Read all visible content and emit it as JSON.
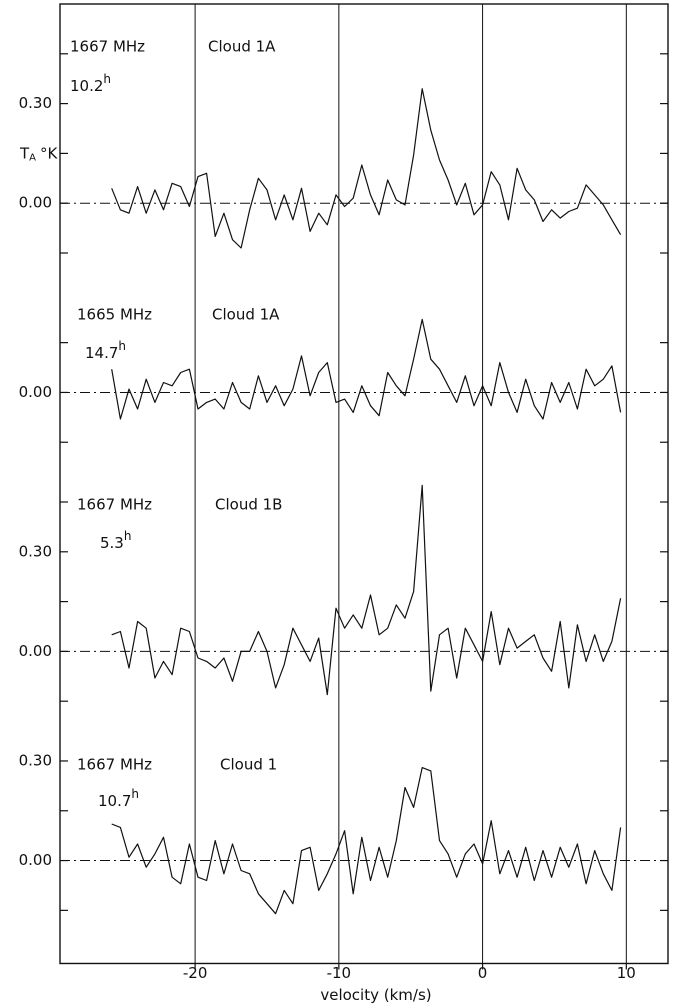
{
  "chart_data": [
    {
      "type": "line",
      "frequency": "1667 MHz",
      "source": "Cloud 1A",
      "integration": "10.2",
      "integration_unit": "h",
      "y_label": "T",
      "y_label_subscript": "A",
      "y_label_unit": "°K",
      "xlim": [
        -29.4,
        12.9
      ],
      "ylim": [
        -0.26,
        0.6
      ],
      "yticks": [
        {
          "value": 0.3,
          "label": "0.30"
        },
        {
          "value": 0,
          "label": "0.00"
        }
      ],
      "minor_yticks": [
        0.45,
        0.15,
        -0.15
      ],
      "x": [
        -25.8,
        -25.2,
        -24.6,
        -24.0,
        -23.4,
        -22.8,
        -22.2,
        -21.6,
        -21.0,
        -20.4,
        -19.8,
        -19.2,
        -18.6,
        -18.0,
        -17.4,
        -16.8,
        -16.2,
        -15.6,
        -15.0,
        -14.4,
        -13.8,
        -13.2,
        -12.6,
        -12.0,
        -11.4,
        -10.8,
        -10.2,
        -9.6,
        -9.0,
        -8.4,
        -7.8,
        -7.2,
        -6.6,
        -6.0,
        -5.4,
        -4.8,
        -4.2,
        -3.6,
        -3.0,
        -2.4,
        -1.8,
        -1.2,
        -0.6,
        0.0,
        0.6,
        1.2,
        1.8,
        2.4,
        3.0,
        3.6,
        4.2,
        4.8,
        5.4,
        6.0,
        6.6,
        7.2,
        7.8,
        8.4,
        9.0,
        9.6
      ],
      "values": [
        0.045,
        -0.02,
        -0.03,
        0.05,
        -0.03,
        0.04,
        -0.02,
        0.06,
        0.05,
        -0.01,
        0.08,
        0.09,
        -0.1,
        -0.03,
        -0.11,
        -0.135,
        -0.02,
        0.075,
        0.04,
        -0.05,
        0.025,
        -0.05,
        0.045,
        -0.085,
        -0.03,
        -0.065,
        0.025,
        -0.01,
        0.015,
        0.115,
        0.025,
        -0.035,
        0.07,
        0.01,
        -0.005,
        0.145,
        0.345,
        0.22,
        0.13,
        0.07,
        -0.005,
        0.06,
        -0.035,
        -0.005,
        0.095,
        0.055,
        -0.05,
        0.105,
        0.04,
        0.01,
        -0.055,
        -0.02,
        -0.045,
        -0.025,
        -0.015,
        0.055,
        0.025,
        -0.005,
        -0.05,
        -0.095
      ]
    },
    {
      "type": "line",
      "frequency": "1665 MHz",
      "source": "Cloud 1A",
      "integration": "14.7",
      "integration_unit": "h",
      "xlim": [
        -29.4,
        12.9
      ],
      "ylim": [
        -0.24,
        0.31
      ],
      "yticks": [
        {
          "value": 0,
          "label": "0.00"
        }
      ],
      "minor_yticks": [
        0.15,
        -0.15
      ],
      "x": [
        -25.8,
        -25.2,
        -24.6,
        -24.0,
        -23.4,
        -22.8,
        -22.2,
        -21.6,
        -21.0,
        -20.4,
        -19.8,
        -19.2,
        -18.6,
        -18.0,
        -17.4,
        -16.8,
        -16.2,
        -15.6,
        -15.0,
        -14.4,
        -13.8,
        -13.2,
        -12.6,
        -12.0,
        -11.4,
        -10.8,
        -10.2,
        -9.6,
        -9.0,
        -8.4,
        -7.8,
        -7.2,
        -6.6,
        -6.0,
        -5.4,
        -4.8,
        -4.2,
        -3.6,
        -3.0,
        -2.4,
        -1.8,
        -1.2,
        -0.6,
        0.0,
        0.6,
        1.2,
        1.8,
        2.4,
        3.0,
        3.6,
        4.2,
        4.8,
        5.4,
        6.0,
        6.6,
        7.2,
        7.8,
        8.4,
        9.0,
        9.6
      ],
      "values": [
        0.07,
        -0.08,
        0.01,
        -0.05,
        0.04,
        -0.03,
        0.03,
        0.02,
        0.06,
        0.07,
        -0.05,
        -0.03,
        -0.02,
        -0.05,
        0.03,
        -0.03,
        -0.05,
        0.05,
        -0.03,
        0.02,
        -0.04,
        0.01,
        0.11,
        -0.01,
        0.06,
        0.09,
        -0.03,
        -0.02,
        -0.06,
        0.02,
        -0.04,
        -0.07,
        0.06,
        0.02,
        -0.01,
        0.1,
        0.22,
        0.1,
        0.07,
        0.02,
        -0.03,
        0.05,
        -0.04,
        0.02,
        -0.04,
        0.09,
        0.0,
        -0.06,
        0.04,
        -0.04,
        -0.08,
        0.03,
        -0.03,
        0.03,
        -0.05,
        0.07,
        0.02,
        0.04,
        0.08,
        -0.06
      ]
    },
    {
      "type": "line",
      "frequency": "1667 MHz",
      "source": "Cloud 1B",
      "integration": "5.3",
      "integration_unit": "h",
      "xlim": [
        -29.4,
        12.9
      ],
      "ylim": [
        -0.27,
        0.54
      ],
      "yticks": [
        {
          "value": 0.3,
          "label": "0.30"
        },
        {
          "value": 0,
          "label": "0.00"
        }
      ],
      "minor_yticks": [
        0.45,
        0.15,
        -0.15
      ],
      "x": [
        -25.8,
        -25.2,
        -24.6,
        -24.0,
        -23.4,
        -22.8,
        -22.2,
        -21.6,
        -21.0,
        -20.4,
        -19.8,
        -19.2,
        -18.6,
        -18.0,
        -17.4,
        -16.8,
        -16.2,
        -15.6,
        -15.0,
        -14.4,
        -13.8,
        -13.2,
        -12.6,
        -12.0,
        -11.4,
        -10.8,
        -10.2,
        -9.6,
        -9.0,
        -8.4,
        -7.8,
        -7.2,
        -6.6,
        -6.0,
        -5.4,
        -4.8,
        -4.2,
        -3.6,
        -3.0,
        -2.4,
        -1.8,
        -1.2,
        -0.6,
        0.0,
        0.6,
        1.2,
        1.8,
        2.4,
        3.0,
        3.6,
        4.2,
        4.8,
        5.4,
        6.0,
        6.6,
        7.2,
        7.8,
        8.4,
        9.0,
        9.6
      ],
      "values": [
        0.05,
        0.06,
        -0.05,
        0.09,
        0.07,
        -0.08,
        -0.03,
        -0.07,
        0.07,
        0.06,
        -0.02,
        -0.03,
        -0.05,
        -0.02,
        -0.09,
        0.0,
        0.0,
        0.06,
        0.0,
        -0.11,
        -0.04,
        0.07,
        0.02,
        -0.03,
        0.04,
        -0.13,
        0.13,
        0.07,
        0.11,
        0.07,
        0.17,
        0.05,
        0.07,
        0.14,
        0.1,
        0.18,
        0.5,
        -0.12,
        0.05,
        0.07,
        -0.08,
        0.07,
        0.02,
        -0.03,
        0.12,
        -0.04,
        0.07,
        0.01,
        0.03,
        0.05,
        -0.02,
        -0.06,
        0.09,
        -0.11,
        0.08,
        -0.03,
        0.05,
        -0.03,
        0.03,
        0.16
      ]
    },
    {
      "type": "line",
      "frequency": "1667 MHz",
      "source": "Cloud 1",
      "integration": "10.7",
      "integration_unit": "h",
      "x_label": "velocity (km/s)",
      "xlim": [
        -29.4,
        12.9
      ],
      "xticks": [
        -20,
        -10,
        0,
        10
      ],
      "ylim": [
        -0.31,
        0.36
      ],
      "yticks": [
        {
          "value": 0.3,
          "label": "0.30"
        },
        {
          "value": 0,
          "label": "0.00"
        }
      ],
      "minor_yticks": [
        0.15,
        -0.15
      ],
      "x": [
        -25.8,
        -25.2,
        -24.6,
        -24.0,
        -23.4,
        -22.8,
        -22.2,
        -21.6,
        -21.0,
        -20.4,
        -19.8,
        -19.2,
        -18.6,
        -18.0,
        -17.4,
        -16.8,
        -16.2,
        -15.6,
        -15.0,
        -14.4,
        -13.8,
        -13.2,
        -12.6,
        -12.0,
        -11.4,
        -10.8,
        -10.2,
        -9.6,
        -9.0,
        -8.4,
        -7.8,
        -7.2,
        -6.6,
        -6.0,
        -5.4,
        -4.8,
        -4.2,
        -3.6,
        -3.0,
        -2.4,
        -1.8,
        -1.2,
        -0.6,
        0.0,
        0.6,
        1.2,
        1.8,
        2.4,
        3.0,
        3.6,
        4.2,
        4.8,
        5.4,
        6.0,
        6.6,
        7.2,
        7.8,
        8.4,
        9.0,
        9.6
      ],
      "values": [
        0.11,
        0.1,
        0.01,
        0.05,
        -0.02,
        0.02,
        0.07,
        -0.05,
        -0.07,
        0.05,
        -0.05,
        -0.06,
        0.06,
        -0.04,
        0.05,
        -0.03,
        -0.04,
        -0.1,
        -0.13,
        -0.16,
        -0.09,
        -0.13,
        0.03,
        0.04,
        -0.09,
        -0.04,
        0.02,
        0.09,
        -0.1,
        0.07,
        -0.06,
        0.04,
        -0.05,
        0.06,
        0.22,
        0.16,
        0.28,
        0.27,
        0.06,
        0.02,
        -0.05,
        0.02,
        0.05,
        -0.01,
        0.12,
        -0.04,
        0.03,
        -0.05,
        0.04,
        -0.06,
        0.03,
        -0.05,
        0.04,
        -0.02,
        0.05,
        -0.07,
        0.03,
        -0.04,
        -0.09,
        0.1
      ]
    }
  ]
}
